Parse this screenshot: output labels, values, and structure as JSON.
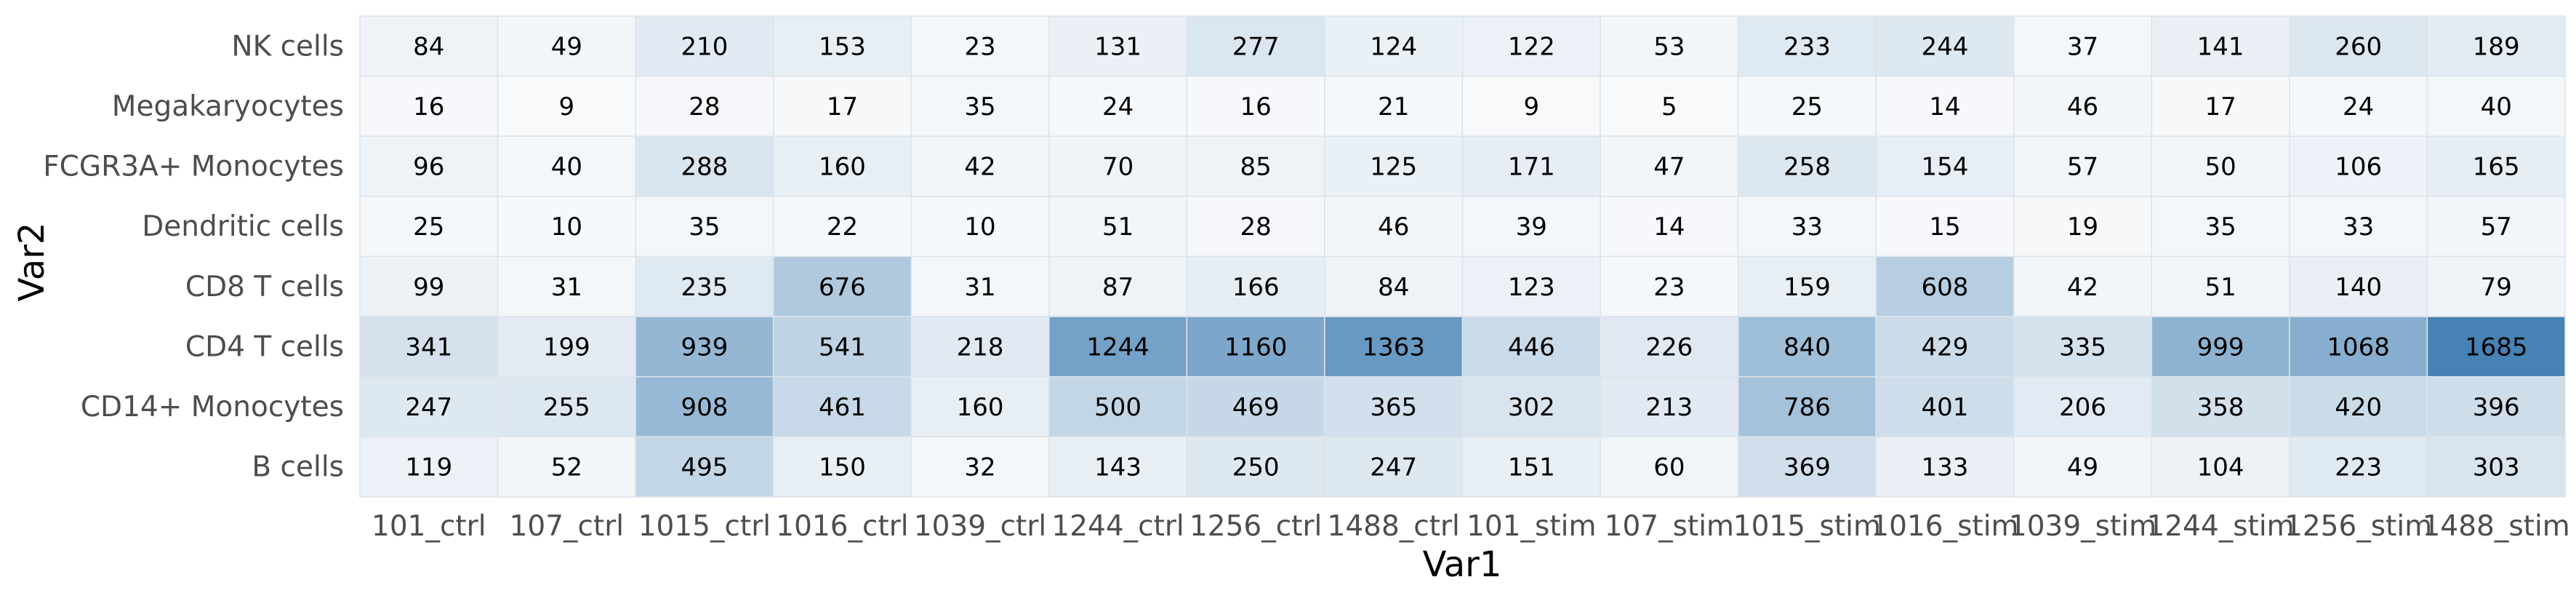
{
  "chart_data": {
    "type": "heatmap",
    "title": "",
    "xlabel": "Var1",
    "ylabel": "Var2",
    "x_categories": [
      "101_ctrl",
      "107_ctrl",
      "1015_ctrl",
      "1016_ctrl",
      "1039_ctrl",
      "1244_ctrl",
      "1256_ctrl",
      "1488_ctrl",
      "101_stim",
      "107_stim",
      "1015_stim",
      "1016_stim",
      "1039_stim",
      "1244_stim",
      "1256_stim",
      "1488_stim"
    ],
    "y_categories": [
      "NK cells",
      "Megakaryocytes",
      "FCGR3A+ Monocytes",
      "Dendritic cells",
      "CD8 T cells",
      "CD4 T cells",
      "CD14+ Monocytes",
      "B cells"
    ],
    "values": [
      [
        84,
        49,
        210,
        153,
        23,
        131,
        277,
        124,
        122,
        53,
        233,
        244,
        37,
        141,
        260,
        189
      ],
      [
        16,
        9,
        28,
        17,
        35,
        24,
        16,
        21,
        9,
        5,
        25,
        14,
        46,
        17,
        24,
        40
      ],
      [
        96,
        40,
        288,
        160,
        42,
        70,
        85,
        125,
        171,
        47,
        258,
        154,
        57,
        50,
        106,
        165
      ],
      [
        25,
        10,
        35,
        22,
        10,
        51,
        28,
        46,
        39,
        14,
        33,
        15,
        19,
        35,
        33,
        57
      ],
      [
        99,
        31,
        235,
        676,
        31,
        87,
        166,
        84,
        123,
        23,
        159,
        608,
        42,
        51,
        140,
        79
      ],
      [
        341,
        199,
        939,
        541,
        218,
        1244,
        1160,
        1363,
        446,
        226,
        840,
        429,
        335,
        999,
        1068,
        1685
      ],
      [
        247,
        255,
        908,
        461,
        160,
        500,
        469,
        365,
        302,
        213,
        786,
        401,
        206,
        358,
        420,
        396
      ],
      [
        119,
        52,
        495,
        150,
        32,
        143,
        250,
        247,
        151,
        60,
        369,
        133,
        49,
        104,
        223,
        303
      ]
    ],
    "color_low": "#f7f9fb",
    "color_high": "#4682b4",
    "grid": false,
    "legend": "none"
  }
}
